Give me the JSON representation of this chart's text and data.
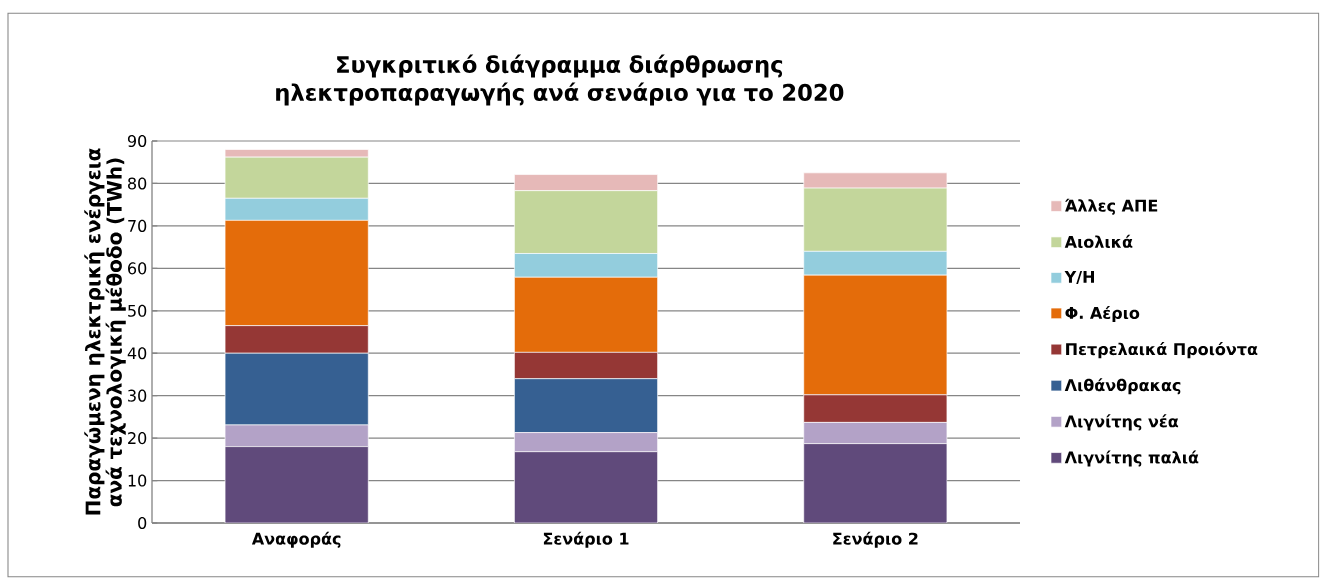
{
  "chart_data": {
    "type": "bar",
    "stacked": true,
    "title": "Συγκριτικό διάγραμμα διάρθρωσης ηλεκτροπαραγωγής ανά σενάριο για το 2020",
    "ylabel": "Παραγώμενη ηλεκτρική ενέργεια ανά τεχνολογική μέθοδο (TWh)",
    "categories": [
      "Αναφοράς",
      "Σενάριο 1",
      "Σενάριο 2"
    ],
    "series": [
      {
        "name": "Λιγνίτης παλιά",
        "color": "#604a7b",
        "values": [
          18.0,
          16.8,
          18.7
        ]
      },
      {
        "name": "Λιγνίτης νέα",
        "color": "#b3a2c7",
        "values": [
          5.1,
          4.5,
          5.0
        ]
      },
      {
        "name": "Λιθάνθρακας",
        "color": "#366092",
        "values": [
          16.9,
          12.7,
          0
        ]
      },
      {
        "name": "Πετρελαικά Προιόντα",
        "color": "#953735",
        "values": [
          6.5,
          6.2,
          6.5
        ]
      },
      {
        "name": "Φ. Αέριο",
        "color": "#e46c0a",
        "values": [
          24.8,
          17.7,
          28.2
        ]
      },
      {
        "name": "Υ/Η",
        "color": "#93cddd",
        "values": [
          5.2,
          5.6,
          5.6
        ]
      },
      {
        "name": "Αιολικά",
        "color": "#c3d69b",
        "values": [
          9.7,
          14.8,
          14.9
        ]
      },
      {
        "name": "Άλλες ΑΠΕ",
        "color": "#e6b9b8",
        "values": [
          1.8,
          3.8,
          3.6
        ]
      }
    ],
    "ylim": [
      0,
      90
    ],
    "yticks": [
      0,
      10,
      20,
      30,
      40,
      50,
      60,
      70,
      80,
      90
    ],
    "grid": "y",
    "legend": "right"
  }
}
